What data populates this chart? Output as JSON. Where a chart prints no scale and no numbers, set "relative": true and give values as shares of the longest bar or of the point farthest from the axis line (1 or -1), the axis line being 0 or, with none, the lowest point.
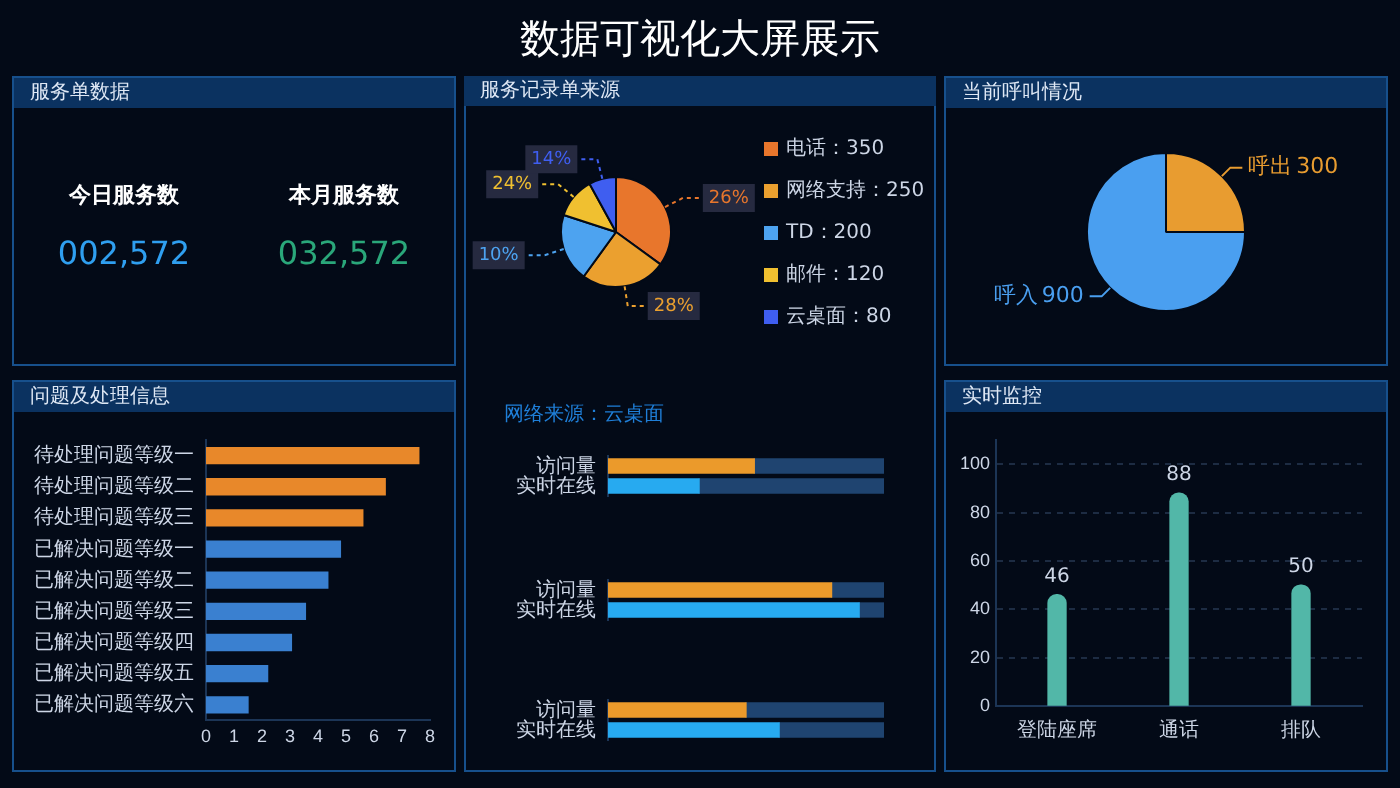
{
  "chart_data": [
    {
      "type": "other",
      "title": "数据可视化大屏展示"
    },
    {
      "type": "other",
      "title": "服务单数据",
      "categories": [
        "今日服务数",
        "本月服务数"
      ],
      "value_labels": [
        "002,572",
        "032,572"
      ],
      "colors": [
        "#2f9ff0",
        "#2aa77a"
      ]
    },
    {
      "type": "pie",
      "title": "服务记录单来源",
      "categories": [
        "电话：350",
        "网络支持：250",
        "TD：200",
        "邮件：120",
        "云桌面：80"
      ],
      "values": [
        350,
        250,
        200,
        120,
        80
      ],
      "colors": [
        "#e8762c",
        "#eba02f",
        "#4da3f0",
        "#f0c030",
        "#3f5ef0"
      ],
      "annotations": [
        "26%",
        "28%",
        "10%",
        "24%",
        "14%"
      ],
      "legend": "right"
    },
    {
      "type": "pie",
      "title": "当前呼叫情况",
      "categories": [
        "呼出",
        "呼入"
      ],
      "values": [
        300,
        900
      ],
      "colors": [
        "#e89c30",
        "#4a9ff0"
      ],
      "data_labels": true
    },
    {
      "type": "bar",
      "title": "问题及处理信息",
      "orientation": "horizontal",
      "categories": [
        "待处理问题等级一",
        "待处理问题等级二",
        "待处理问题等级三",
        "已解决问题等级一",
        "已解决问题等级二",
        "已解决问题等级三",
        "已解决问题等级四",
        "已解决问题等级五",
        "已解决问题等级六"
      ],
      "values": [
        7.6,
        6.4,
        5.6,
        4.8,
        4.35,
        3.55,
        3.05,
        2.2,
        1.5
      ],
      "colors": [
        "#e8882a",
        "#e8882a",
        "#e8882a",
        "#3a80d0",
        "#3a80d0",
        "#3a80d0",
        "#3a80d0",
        "#3a80d0",
        "#3a80d0"
      ],
      "xlim": [
        0,
        8
      ],
      "xticks": [
        0,
        1,
        2,
        3,
        4,
        5,
        6,
        7,
        8
      ]
    },
    {
      "type": "bar",
      "title": "网络来源：云桌面",
      "orientation": "horizontal",
      "stacked": true,
      "relative": true,
      "categories": [
        "访问量",
        "实时在线"
      ],
      "series": [
        {
          "colors": [
            "#eb9a2b",
            "#27aaf0"
          ],
          "values": [
            0.53,
            0.33
          ]
        },
        {
          "color": "#1f4470",
          "values": [
            0.47,
            0.67
          ]
        }
      ]
    },
    {
      "type": "bar",
      "orientation": "horizontal",
      "stacked": true,
      "relative": true,
      "categories": [
        "访问量",
        "实时在线"
      ],
      "series": [
        {
          "colors": [
            "#eb9a2b",
            "#27aaf0"
          ],
          "values": [
            0.81,
            0.91
          ]
        },
        {
          "color": "#1f4470",
          "values": [
            0.19,
            0.09
          ]
        }
      ]
    },
    {
      "type": "bar",
      "orientation": "horizontal",
      "stacked": true,
      "relative": true,
      "categories": [
        "访问量",
        "实时在线"
      ],
      "series": [
        {
          "colors": [
            "#eb9a2b",
            "#27aaf0"
          ],
          "values": [
            0.5,
            0.62
          ]
        },
        {
          "color": "#1f4470",
          "values": [
            0.5,
            0.38
          ]
        }
      ]
    },
    {
      "type": "bar",
      "title": "实时监控",
      "categories": [
        "登陆座席",
        "通话",
        "排队"
      ],
      "values": [
        46,
        88,
        50
      ],
      "color": "#52b7a8",
      "ylim": [
        0,
        110
      ],
      "yticks": [
        0,
        20,
        40,
        60,
        80,
        100
      ],
      "grid": "y",
      "data_labels": true
    }
  ]
}
